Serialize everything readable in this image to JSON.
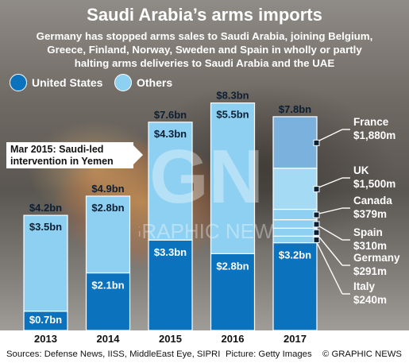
{
  "header": {
    "title": "Saudi Arabia’s arms imports",
    "subtitle_lines": [
      "Germany has stopped arms sales to Saudi Arabia, joining Belgium,",
      "Greece, Finland, Norway, Sweden and Spain in wholly or partly",
      "halting arms deliveries to Saudi Arabia and the UAE"
    ]
  },
  "legend": {
    "us_label": "United States",
    "others_label": "Others"
  },
  "callout": {
    "lines": [
      "Mar 2015: Saudi-led",
      "intervention in Yemen"
    ]
  },
  "watermark": {
    "logo": "GN",
    "text": "GRAPHIC NEWS"
  },
  "footer": {
    "sources": "Sources: Defense News, IISS, MiddleEast Eye, SIPRI",
    "picture": "Picture: Getty Images",
    "credit": "© GRAPHIC NEWS"
  },
  "colors": {
    "us": "#0b73bd",
    "others": "#8ed0f1",
    "france": "#7ab1dd",
    "uk": "#a5daf5",
    "small": "#8ed0f1",
    "axis_band": "#ffffff",
    "label_box": "#0c1f33",
    "year_text": "#111111"
  },
  "chart_data": {
    "type": "bar",
    "categories": [
      "2013",
      "2014",
      "2015",
      "2016",
      "2017"
    ],
    "ylim": [
      0,
      9
    ],
    "unit": "bn",
    "series": [
      {
        "name": "United States",
        "values": [
          0.7,
          2.1,
          3.3,
          2.8,
          3.2
        ],
        "labels": [
          "$0.7bn",
          "$2.1bn",
          "$3.3bn",
          "$2.8bn",
          "$3.2bn"
        ]
      },
      {
        "name": "Others",
        "values": [
          3.5,
          2.8,
          4.3,
          5.5,
          null
        ],
        "labels": [
          "$3.5bn",
          "$2.8bn",
          "$4.3bn",
          "$5.5bn",
          ""
        ]
      }
    ],
    "totals": [
      4.2,
      4.9,
      7.6,
      8.3,
      7.8
    ],
    "total_labels": [
      "$4.2bn",
      "$4.9bn",
      "$7.6bn",
      "$8.3bn",
      "$7.8bn"
    ],
    "breakdown_2017": [
      {
        "country": "France",
        "value_m": 1880,
        "label": "$1,880m"
      },
      {
        "country": "UK",
        "value_m": 1500,
        "label": "$1,500m"
      },
      {
        "country": "Canada",
        "value_m": 379,
        "label": "$379m"
      },
      {
        "country": "Spain",
        "value_m": 310,
        "label": "$310m"
      },
      {
        "country": "Germany",
        "value_m": 291,
        "label": "$291m"
      },
      {
        "country": "Italy",
        "value_m": 240,
        "label": "$240m"
      }
    ]
  }
}
